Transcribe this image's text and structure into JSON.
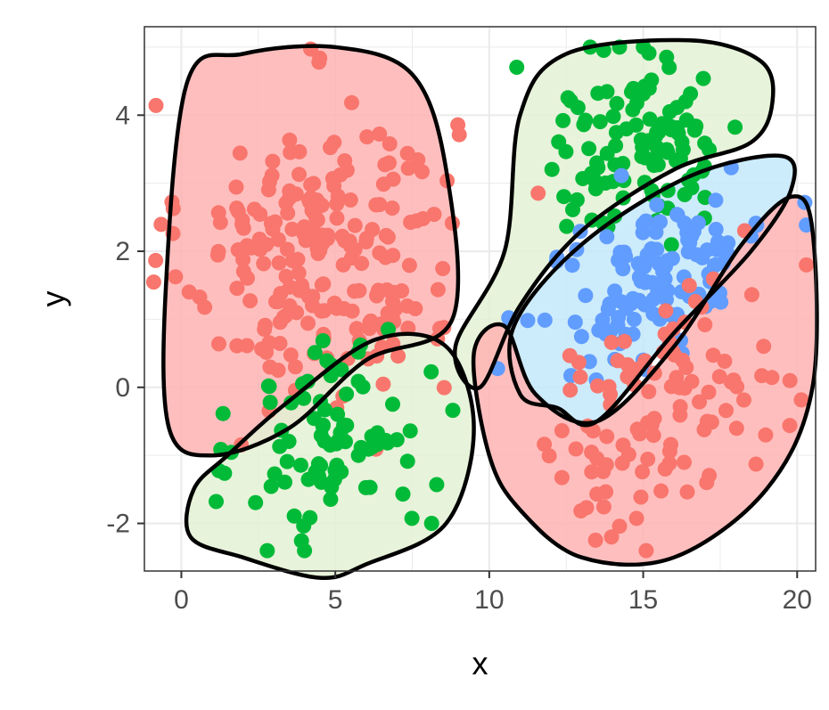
{
  "chart_data": {
    "type": "scatter",
    "title": "",
    "xlabel": "x",
    "ylabel": "y",
    "xlim": [
      -1.2,
      20.6
    ],
    "ylim": [
      -2.7,
      5.3
    ],
    "x_ticks": [
      0,
      5,
      10,
      15,
      20
    ],
    "x_tick_labels": [
      "0",
      "5",
      "10",
      "15",
      "20"
    ],
    "y_ticks": [
      -2,
      0,
      2,
      4
    ],
    "y_tick_labels": [
      "-2",
      "0",
      "2",
      "4"
    ],
    "grid": true,
    "legend": "none",
    "colors": {
      "red": "#f8766d",
      "green": "#00ba38",
      "blue": "#619cff",
      "red_hull_fill": "#ffb3b3",
      "green_hull_fill": "#e3f1d3",
      "blue_hull_fill": "#c3e7fa",
      "hull_stroke": "#000000",
      "panel_border": "#333333",
      "grid_major": "#ebebeb"
    },
    "clusters": [
      {
        "color": "red",
        "center": [
          4.5,
          2.0
        ],
        "sx": 2.2,
        "sy": 1.1,
        "rho": 0.0,
        "n": 230
      },
      {
        "color": "green",
        "center": [
          5.0,
          -0.8
        ],
        "sx": 1.5,
        "sy": 0.8,
        "rho": 0.1,
        "n": 90
      },
      {
        "color": "green",
        "center": [
          15.0,
          3.6
        ],
        "sx": 1.6,
        "sy": 0.7,
        "rho": 0.0,
        "n": 110
      },
      {
        "color": "blue",
        "center": [
          15.5,
          1.6
        ],
        "sx": 1.8,
        "sy": 0.75,
        "rho": 0.6,
        "n": 130
      },
      {
        "color": "red",
        "center": [
          15.5,
          -0.3
        ],
        "sx": 2.0,
        "sy": 0.9,
        "rho": 0.5,
        "n": 110
      }
    ],
    "hulls": [
      {
        "color": "red",
        "points": [
          [
            -0.5,
            1.5
          ],
          [
            0.2,
            4.5
          ],
          [
            2.0,
            4.9
          ],
          [
            5.0,
            5.0
          ],
          [
            7.5,
            4.6
          ],
          [
            8.6,
            3.2
          ],
          [
            8.8,
            1.0
          ],
          [
            6.0,
            0.4
          ],
          [
            3.5,
            -0.6
          ],
          [
            1.0,
            -1.0
          ],
          [
            -0.4,
            -0.6
          ]
        ]
      },
      {
        "color": "green",
        "points": [
          [
            0.4,
            -1.5
          ],
          [
            1.5,
            -1.0
          ],
          [
            3.5,
            -0.2
          ],
          [
            6.3,
            0.7
          ],
          [
            8.6,
            0.6
          ],
          [
            9.5,
            -0.6
          ],
          [
            8.6,
            -2.0
          ],
          [
            6.0,
            -2.6
          ],
          [
            4.5,
            -2.8
          ],
          [
            2.0,
            -2.5
          ],
          [
            0.3,
            -2.2
          ]
        ]
      },
      {
        "color": "green",
        "points": [
          [
            10.5,
            2.0
          ],
          [
            11.0,
            4.0
          ],
          [
            12.5,
            4.9
          ],
          [
            16.5,
            5.1
          ],
          [
            18.8,
            4.8
          ],
          [
            19.2,
            4.2
          ],
          [
            18.5,
            3.6
          ],
          [
            16.0,
            3.2
          ],
          [
            13.0,
            2.3
          ],
          [
            11.0,
            1.2
          ],
          [
            9.7,
            0.0
          ],
          [
            8.9,
            0.6
          ]
        ]
      },
      {
        "color": "blue",
        "points": [
          [
            10.8,
            0.9
          ],
          [
            13.0,
            2.1
          ],
          [
            16.5,
            3.1
          ],
          [
            19.5,
            3.4
          ],
          [
            19.8,
            2.9
          ],
          [
            18.5,
            2.0
          ],
          [
            16.0,
            0.8
          ],
          [
            13.5,
            -0.5
          ],
          [
            12.2,
            -0.3
          ],
          [
            11.0,
            -0.1
          ]
        ]
      },
      {
        "color": "red",
        "points": [
          [
            9.5,
            0.5
          ],
          [
            10.0,
            -1.0
          ],
          [
            11.0,
            -1.8
          ],
          [
            13.0,
            -2.5
          ],
          [
            16.0,
            -2.5
          ],
          [
            19.0,
            -1.5
          ],
          [
            20.5,
            0.0
          ],
          [
            20.5,
            2.3
          ],
          [
            19.8,
            2.8
          ],
          [
            18.2,
            2.1
          ],
          [
            16.0,
            0.6
          ],
          [
            13.5,
            -0.5
          ],
          [
            11.5,
            -0.1
          ],
          [
            10.5,
            0.9
          ]
        ]
      }
    ]
  }
}
